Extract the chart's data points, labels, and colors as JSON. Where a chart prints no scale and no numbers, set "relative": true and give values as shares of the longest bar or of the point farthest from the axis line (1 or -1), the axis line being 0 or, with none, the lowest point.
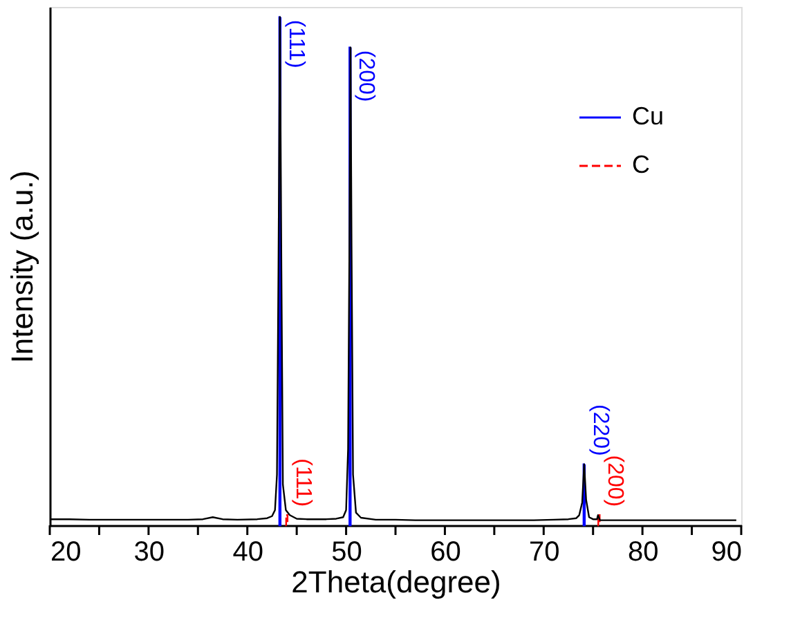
{
  "chart_data": {
    "type": "line",
    "relative": true,
    "xlabel": "2Theta(degree)",
    "ylabel": "Intensity (a.u.)",
    "xlim": [
      20,
      90
    ],
    "xticks": [
      20,
      {
        "value": 25,
        "label": null
      },
      30,
      {
        "value": 35,
        "label": null
      },
      40,
      {
        "value": 45,
        "label": null
      },
      50,
      {
        "value": 55,
        "label": null
      },
      60,
      {
        "value": 65,
        "label": null
      },
      70,
      {
        "value": 75,
        "label": null
      },
      80,
      {
        "value": 85,
        "label": null
      },
      90
    ],
    "grid": false,
    "legend": "top right",
    "marker": "none",
    "series": [
      {
        "color": "#000000",
        "line_style": "solid",
        "x": [
          20,
          22,
          24,
          26,
          28,
          30,
          32,
          34,
          35.5,
          36.5,
          37.5,
          39,
          41,
          42,
          42.5,
          42.8,
          43.0,
          43.15,
          43.3,
          43.45,
          43.6,
          43.9,
          44.3,
          45,
          46,
          47,
          48,
          49,
          49.7,
          50.0,
          50.2,
          50.35,
          50.45,
          50.55,
          50.7,
          51.0,
          51.5,
          53,
          55,
          57,
          59,
          61,
          63,
          65,
          67,
          69,
          71,
          72.5,
          73.3,
          73.6,
          73.9,
          74.1,
          74.3,
          74.6,
          75.0,
          75.4,
          75.5,
          75.7,
          77,
          79,
          81,
          83,
          85,
          87,
          89.5
        ],
        "values": [
          0.012,
          0.012,
          0.011,
          0.011,
          0.011,
          0.011,
          0.011,
          0.011,
          0.012,
          0.016,
          0.012,
          0.011,
          0.012,
          0.014,
          0.018,
          0.03,
          0.1,
          0.5,
          1.0,
          0.5,
          0.08,
          0.03,
          0.02,
          0.013,
          0.012,
          0.012,
          0.012,
          0.013,
          0.016,
          0.03,
          0.15,
          0.6,
          0.94,
          0.55,
          0.1,
          0.025,
          0.015,
          0.011,
          0.011,
          0.01,
          0.01,
          0.01,
          0.01,
          0.01,
          0.01,
          0.01,
          0.011,
          0.012,
          0.014,
          0.02,
          0.045,
          0.12,
          0.05,
          0.016,
          0.012,
          0.012,
          0.02,
          0.01,
          0.01,
          0.01,
          0.01,
          0.01,
          0.01,
          0.01,
          0.01
        ]
      },
      {
        "type": "bar",
        "name": "Cu",
        "color": "#0000ff",
        "line_style": "solid",
        "x": [
          43.3,
          50.4,
          74.1
        ],
        "values": [
          1.0,
          0.94,
          0.12
        ]
      },
      {
        "type": "bar",
        "name": "C",
        "color": "#ff0000",
        "line_style": "dashed",
        "x": [
          44.0,
          75.6
        ],
        "values": [
          0.02,
          0.02
        ]
      }
    ],
    "annotations": [
      {
        "text": "(111)",
        "x": 43.3,
        "y": 1.0
      },
      {
        "text": "(200)",
        "x": 50.4,
        "y": 0.94
      },
      {
        "text": "(220)",
        "x": 74.1,
        "y": 0.12
      },
      {
        "text": "(111)",
        "x": 44.0,
        "y": 0.02
      },
      {
        "text": "(200)",
        "x": 75.6,
        "y": 0.02
      }
    ]
  }
}
